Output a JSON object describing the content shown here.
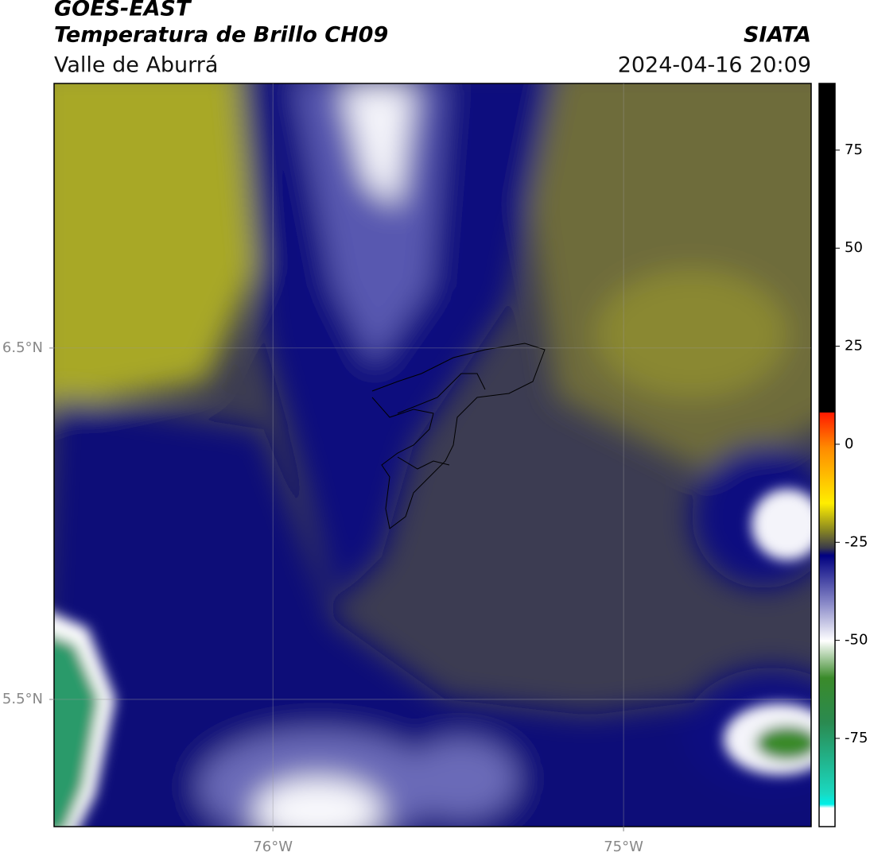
{
  "header": {
    "title": "GOES-EAST",
    "subtitle": "Temperatura de Brillo CH09",
    "region": "Valle de Aburrá",
    "source": "SIATA",
    "datetime": "2024-04-16 20:09"
  },
  "map": {
    "xlim": [
      -76.624,
      -74.465
    ],
    "ylim": [
      5.138,
      7.253
    ],
    "xticks": [
      {
        "value": -76,
        "label": "76°W"
      },
      {
        "value": -75,
        "label": "75°W"
      }
    ],
    "yticks": [
      {
        "value": 6.5,
        "label": "6.5°N"
      },
      {
        "value": 5.5,
        "label": "5.5°N"
      }
    ],
    "grid": true
  },
  "colorbar": {
    "lim": [
      -97.5,
      92
    ],
    "ticks": [
      75,
      50,
      25,
      0,
      -25,
      -50,
      -75
    ]
  }
}
